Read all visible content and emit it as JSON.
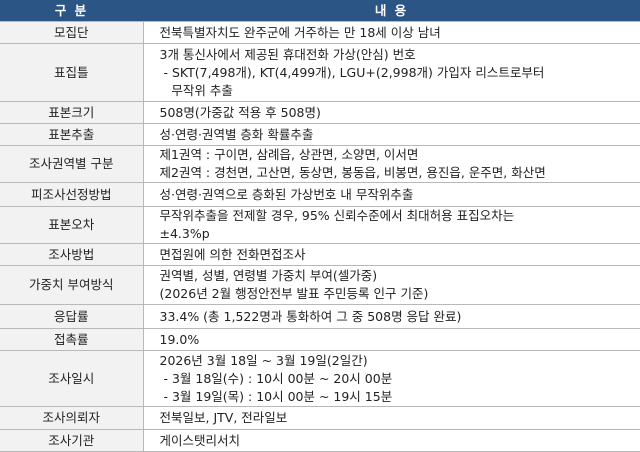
{
  "header": {
    "col1": "구 분",
    "col2": "내          용"
  },
  "rows": [
    {
      "label": "모집단",
      "lines": [
        "전북특별자치도 완주군에 거주하는 만 18세 이상 남녀"
      ]
    },
    {
      "label": "표집틀",
      "lines": [
        "3개 통신사에서 제공된 휴대전화 가상(안심) 번호",
        " - SKT(7,498개), KT(4,499개), LGU+(2,998개) 가입자 리스트로부터",
        "   무작위 추출"
      ]
    },
    {
      "label": "표본크기",
      "lines": [
        "508명(가중값 적용 후 508명)"
      ]
    },
    {
      "label": "표본추출",
      "lines": [
        "성·연령·권역별 층화 확률추출"
      ]
    },
    {
      "label": "조사권역별 구분",
      "lines": [
        "제1권역 : 구이면, 삼례읍, 상관면, 소양면, 이서면",
        "제2권역 : 경천면, 고산면, 동상면, 봉동읍, 비봉면, 용진읍, 운주면, 화산면"
      ]
    },
    {
      "label": "피조사선정방법",
      "lines": [
        "성·연령·권역으로 층화된 가상번호 내 무작위추출"
      ]
    },
    {
      "label": "표본오차",
      "lines": [
        "무작위추출을 전제할 경우, 95% 신뢰수준에서 최대허용 표집오차는",
        "±4.3%p"
      ]
    },
    {
      "label": "조사방법",
      "lines": [
        "면접원에 의한 전화면접조사"
      ]
    },
    {
      "label": "가중치 부여방식",
      "lines": [
        "권역별, 성별, 연령별 가중치 부여(셀가중)",
        "(2026년 2월 행정안전부 발표 주민등록 인구 기준)"
      ]
    },
    {
      "label": "응답률",
      "lines": [
        "33.4% (총 1,522명과 통화하여 그 중 508명 응답 완료)"
      ]
    },
    {
      "label": "접촉률",
      "lines": [
        "19.0%"
      ]
    },
    {
      "label": "조사일시",
      "lines": [
        "2026년 3월 18일 ~ 3월 19일(2일간)",
        " - 3월 18일(수) : 10시 00분 ~ 20시 00분",
        " - 3월 19일(목) : 10시 00분 ~ 19시 15분"
      ]
    },
    {
      "label": "조사의뢰자",
      "lines": [
        "전북일보, JTV, 전라일보"
      ]
    },
    {
      "label": "조사기관",
      "lines": [
        "게이스탯리서치"
      ]
    }
  ]
}
